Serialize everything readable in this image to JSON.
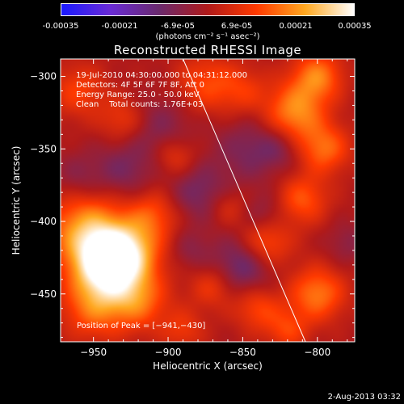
{
  "colorbar": {
    "ticks": [
      "-0.00035",
      "-0.00021",
      "-6.9e-05",
      "6.9e-05",
      "0.00021",
      "0.00035"
    ],
    "unit": "(photons cm⁻² s⁻¹ asec⁻²)",
    "colors": [
      "#1a1aff",
      "#6a2bd6",
      "#6a2a6e",
      "#b01a1a",
      "#ff3a00",
      "#ffa820",
      "#ffffff"
    ]
  },
  "info": {
    "time": "19-Jul-2010 04:30:00.000 to 04:31:12.000",
    "detectors": "Detectors: 4F 5F 6F 7F 8F, Att 0",
    "energy": "Energy Range: 25.0 - 50.0 keV",
    "clean": "Clean    Total counts: 1.76E+03"
  },
  "footer": "2-Aug-2013 03:32",
  "chart_data": {
    "type": "heatmap",
    "title": "Reconstructed RHESSI Image",
    "xlabel": "Heliocentric X (arcsec)",
    "ylabel": "Heliocentric Y (arcsec)",
    "xlim": [
      -972,
      -775
    ],
    "ylim": [
      -483,
      -288
    ],
    "xticks": [
      -950,
      -900,
      -850,
      -800
    ],
    "yticks": [
      -300,
      -350,
      -400,
      -450
    ],
    "xtick_labels": [
      "−950",
      "−900",
      "−850",
      "−800"
    ],
    "ytick_labels": [
      "−300",
      "−350",
      "−400",
      "−450"
    ],
    "color_range": [
      -0.00035,
      0.00035
    ],
    "peak": {
      "x": -941,
      "y": -430,
      "label": "Position of Peak = [−941,−430]"
    },
    "limb_line": [
      [
        -890,
        -288
      ],
      [
        -808,
        -483
      ]
    ],
    "sources": [
      {
        "x": -941,
        "y": -430,
        "amp": 0.00035,
        "sigma": 16
      },
      {
        "x": -955,
        "y": -405,
        "amp": 0.00021,
        "sigma": 18
      },
      {
        "x": -925,
        "y": -420,
        "amp": 0.00018,
        "sigma": 15
      },
      {
        "x": -920,
        "y": -455,
        "amp": 0.00016,
        "sigma": 14
      },
      {
        "x": -950,
        "y": -460,
        "amp": 0.00015,
        "sigma": 15
      },
      {
        "x": -910,
        "y": -395,
        "amp": 0.00012,
        "sigma": 12
      },
      {
        "x": -960,
        "y": -310,
        "amp": 0.00011,
        "sigma": 13
      },
      {
        "x": -930,
        "y": -330,
        "amp": 0.0001,
        "sigma": 11
      },
      {
        "x": -895,
        "y": -355,
        "amp": 0.0001,
        "sigma": 10
      },
      {
        "x": -875,
        "y": -305,
        "amp": 0.00012,
        "sigma": 14
      },
      {
        "x": -850,
        "y": -310,
        "amp": 9e-05,
        "sigma": 12
      },
      {
        "x": -815,
        "y": -325,
        "amp": 0.0002,
        "sigma": 14
      },
      {
        "x": -800,
        "y": -300,
        "amp": 0.00018,
        "sigma": 12
      },
      {
        "x": -795,
        "y": -350,
        "amp": 0.00016,
        "sigma": 12
      },
      {
        "x": -810,
        "y": -385,
        "amp": 0.00014,
        "sigma": 12
      },
      {
        "x": -835,
        "y": -415,
        "amp": 0.00015,
        "sigma": 12
      },
      {
        "x": -800,
        "y": -450,
        "amp": 0.00018,
        "sigma": 13
      },
      {
        "x": -840,
        "y": -460,
        "amp": 0.00012,
        "sigma": 11
      },
      {
        "x": -820,
        "y": -475,
        "amp": 0.00011,
        "sigma": 10
      },
      {
        "x": -870,
        "y": -445,
        "amp": 0.0001,
        "sigma": 11
      },
      {
        "x": -890,
        "y": -475,
        "amp": 9e-05,
        "sigma": 10
      },
      {
        "x": -860,
        "y": -390,
        "amp": 7e-05,
        "sigma": 9
      },
      {
        "x": -905,
        "y": -335,
        "amp": -8e-05,
        "sigma": 16
      },
      {
        "x": -880,
        "y": -380,
        "amp": -0.0001,
        "sigma": 14
      },
      {
        "x": -845,
        "y": -350,
        "amp": -9e-05,
        "sigma": 16
      },
      {
        "x": -850,
        "y": -430,
        "amp": -0.00014,
        "sigma": 14
      },
      {
        "x": -835,
        "y": -395,
        "amp": -7e-05,
        "sigma": 10
      },
      {
        "x": -930,
        "y": -365,
        "amp": -9e-05,
        "sigma": 14
      },
      {
        "x": -960,
        "y": -370,
        "amp": -7e-05,
        "sigma": 12
      },
      {
        "x": -885,
        "y": -420,
        "amp": -6e-05,
        "sigma": 10
      },
      {
        "x": -780,
        "y": -415,
        "amp": -6e-05,
        "sigma": 10
      },
      {
        "x": -825,
        "y": -350,
        "amp": -6e-05,
        "sigma": 10
      }
    ]
  }
}
